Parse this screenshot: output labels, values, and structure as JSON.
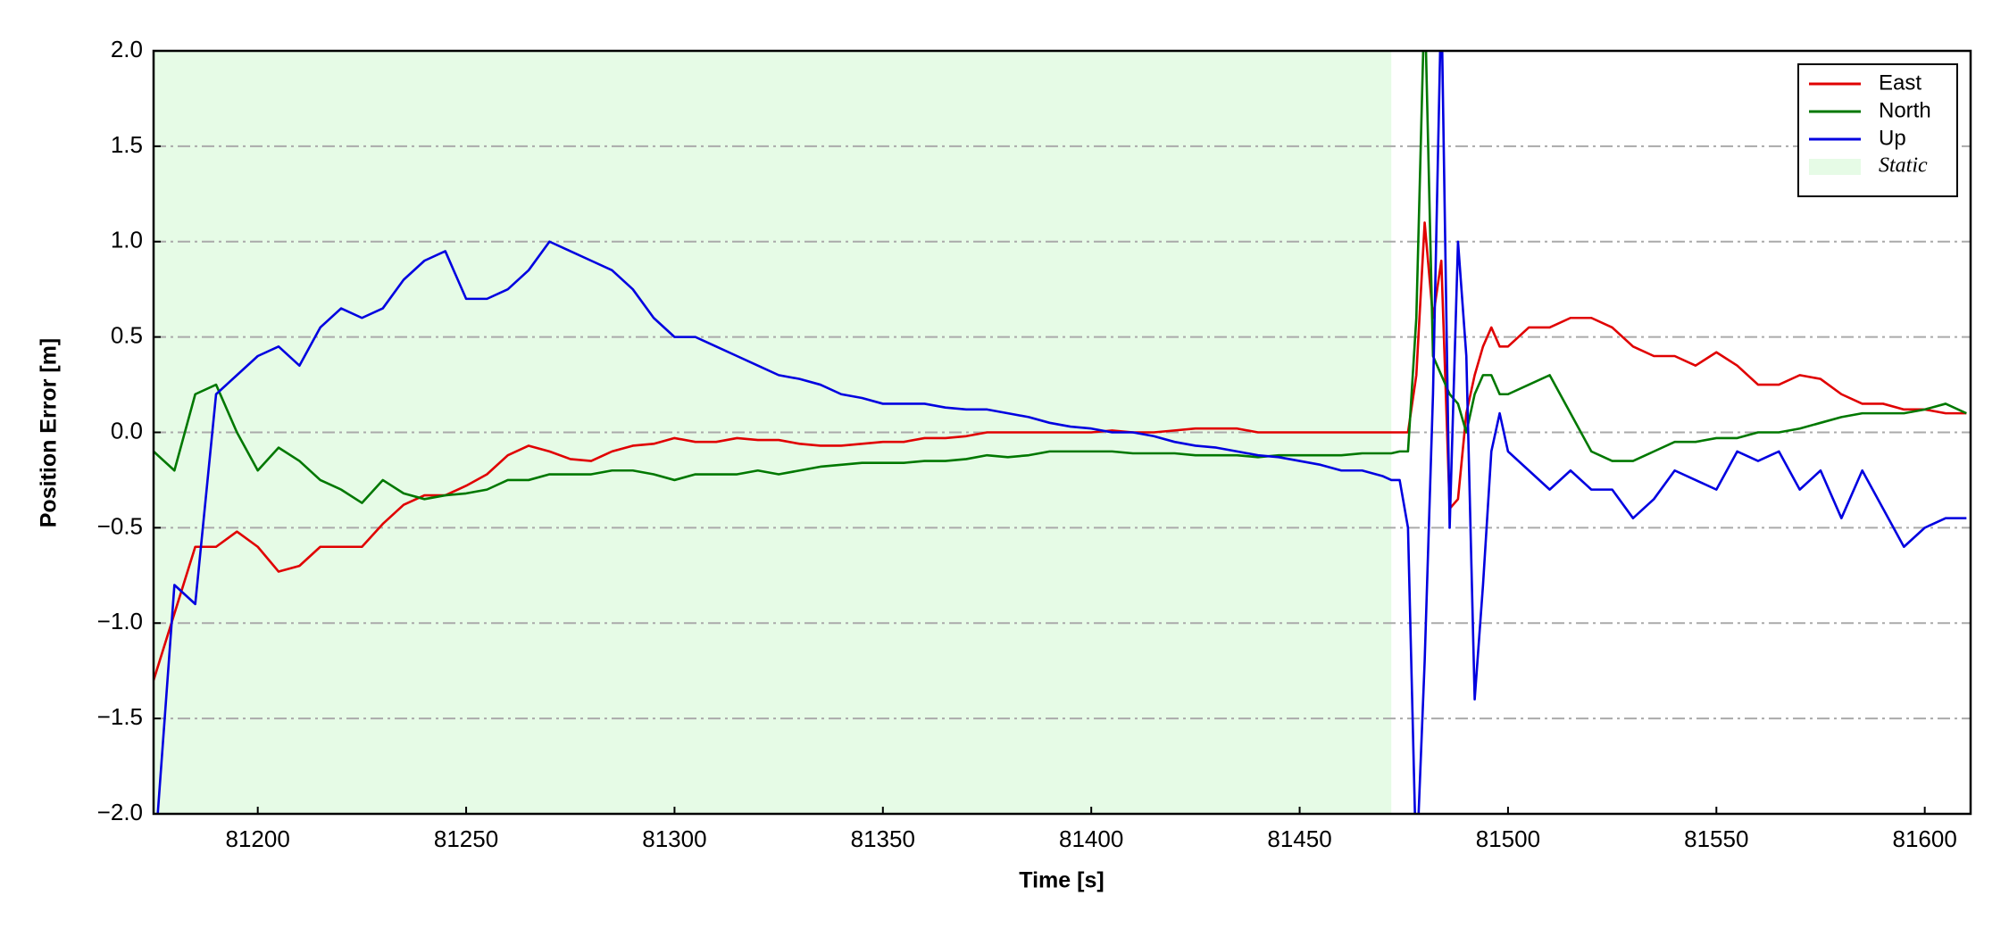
{
  "chart_data": {
    "type": "line",
    "x_label": "Time [s]",
    "y_label": "Position Error [m]",
    "xlim": [
      81175,
      81611
    ],
    "ylim": [
      -2,
      2
    ],
    "xticks": [
      81200,
      81250,
      81300,
      81350,
      81400,
      81450,
      81500,
      81550,
      81600
    ],
    "yticks": [
      {
        "value": -2,
        "label": "−2.0"
      },
      {
        "value": -1.5,
        "label": "−1.5"
      },
      {
        "value": -1,
        "label": "−1.0"
      },
      {
        "value": -0.5,
        "label": "−0.5"
      },
      {
        "value": 0,
        "label": "0.0"
      },
      {
        "value": 0.5,
        "label": "0.5"
      },
      {
        "value": 1,
        "label": "1.0"
      },
      {
        "value": 1.5,
        "label": "1.5"
      },
      {
        "value": 2,
        "label": "2.0"
      }
    ],
    "grid": "y",
    "legend_position": "upper right",
    "static_span": [
      81175,
      81472
    ],
    "static_label": "Static",
    "static_color": "#e6fbe6",
    "x": [
      81175,
      81180,
      81185,
      81190,
      81195,
      81200,
      81205,
      81210,
      81215,
      81220,
      81225,
      81230,
      81235,
      81240,
      81245,
      81250,
      81255,
      81260,
      81265,
      81270,
      81275,
      81280,
      81285,
      81290,
      81295,
      81300,
      81305,
      81310,
      81315,
      81320,
      81325,
      81330,
      81335,
      81340,
      81345,
      81350,
      81355,
      81360,
      81365,
      81370,
      81375,
      81380,
      81385,
      81390,
      81395,
      81400,
      81405,
      81410,
      81415,
      81420,
      81425,
      81430,
      81435,
      81440,
      81445,
      81450,
      81455,
      81460,
      81465,
      81470,
      81472,
      81474,
      81476,
      81478,
      81480,
      81482,
      81484,
      81486,
      81488,
      81490,
      81492,
      81494,
      81496,
      81498,
      81500,
      81505,
      81510,
      81515,
      81520,
      81525,
      81530,
      81535,
      81540,
      81545,
      81550,
      81555,
      81560,
      81565,
      81570,
      81575,
      81580,
      81585,
      81590,
      81595,
      81600,
      81605,
      81610
    ],
    "series": [
      {
        "name": "East",
        "color": "#e00000",
        "values": [
          -1.3,
          -0.95,
          -0.6,
          -0.6,
          -0.52,
          -0.6,
          -0.73,
          -0.7,
          -0.6,
          -0.6,
          -0.6,
          -0.48,
          -0.38,
          -0.33,
          -0.33,
          -0.28,
          -0.22,
          -0.12,
          -0.07,
          -0.1,
          -0.14,
          -0.15,
          -0.1,
          -0.07,
          -0.06,
          -0.03,
          -0.05,
          -0.05,
          -0.03,
          -0.04,
          -0.04,
          -0.06,
          -0.07,
          -0.07,
          -0.06,
          -0.05,
          -0.05,
          -0.03,
          -0.03,
          -0.02,
          0,
          0,
          0,
          0,
          0,
          0,
          0.01,
          0,
          0,
          0.01,
          0.02,
          0.02,
          0.02,
          0,
          0,
          0,
          0,
          0,
          0,
          0,
          0,
          0,
          0,
          0.3,
          1.1,
          0.6,
          0.9,
          -0.4,
          -0.35,
          0.1,
          0.3,
          0.45,
          0.55,
          0.45,
          0.45,
          0.55,
          0.55,
          0.6,
          0.6,
          0.55,
          0.45,
          0.4,
          0.4,
          0.35,
          0.42,
          0.35,
          0.25,
          0.25,
          0.3,
          0.28,
          0.2,
          0.15,
          0.15,
          0.12,
          0.12,
          0.1,
          0.1
        ]
      },
      {
        "name": "North",
        "color": "#007800",
        "values": [
          -0.1,
          -0.2,
          0.2,
          0.25,
          0,
          -0.2,
          -0.08,
          -0.15,
          -0.25,
          -0.3,
          -0.37,
          -0.25,
          -0.32,
          -0.35,
          -0.33,
          -0.32,
          -0.3,
          -0.25,
          -0.25,
          -0.22,
          -0.22,
          -0.22,
          -0.2,
          -0.2,
          -0.22,
          -0.25,
          -0.22,
          -0.22,
          -0.22,
          -0.2,
          -0.22,
          -0.2,
          -0.18,
          -0.17,
          -0.16,
          -0.16,
          -0.16,
          -0.15,
          -0.15,
          -0.14,
          -0.12,
          -0.13,
          -0.12,
          -0.1,
          -0.1,
          -0.1,
          -0.1,
          -0.11,
          -0.11,
          -0.11,
          -0.12,
          -0.12,
          -0.12,
          -0.13,
          -0.12,
          -0.12,
          -0.12,
          -0.12,
          -0.11,
          -0.11,
          -0.11,
          -0.1,
          -0.1,
          0.6,
          2.3,
          0.4,
          0.3,
          0.2,
          0.15,
          0,
          0.2,
          0.3,
          0.3,
          0.2,
          0.2,
          0.25,
          0.3,
          0.1,
          -0.1,
          -0.15,
          -0.15,
          -0.1,
          -0.05,
          -0.05,
          -0.03,
          -0.03,
          0,
          0,
          0.02,
          0.05,
          0.08,
          0.1,
          0.1,
          0.1,
          0.12,
          0.15,
          0.1
        ]
      },
      {
        "name": "Up",
        "color": "#0000e0",
        "values": [
          -2.3,
          -0.8,
          -0.9,
          0.2,
          0.3,
          0.4,
          0.45,
          0.35,
          0.55,
          0.65,
          0.6,
          0.65,
          0.8,
          0.9,
          0.95,
          0.7,
          0.7,
          0.75,
          0.85,
          1,
          0.95,
          0.9,
          0.85,
          0.75,
          0.6,
          0.5,
          0.5,
          0.45,
          0.4,
          0.35,
          0.3,
          0.28,
          0.25,
          0.2,
          0.18,
          0.15,
          0.15,
          0.15,
          0.13,
          0.12,
          0.12,
          0.1,
          0.08,
          0.05,
          0.03,
          0.02,
          0,
          0,
          -0.02,
          -0.05,
          -0.07,
          -0.08,
          -0.1,
          -0.12,
          -0.13,
          -0.15,
          -0.17,
          -0.2,
          -0.2,
          -0.23,
          -0.25,
          -0.25,
          -0.5,
          -2.3,
          -1.2,
          0.2,
          2.3,
          -0.5,
          1,
          0.4,
          -1.4,
          -0.8,
          -0.1,
          0.1,
          -0.1,
          -0.2,
          -0.3,
          -0.2,
          -0.3,
          -0.3,
          -0.45,
          -0.35,
          -0.2,
          -0.25,
          -0.3,
          -0.1,
          -0.15,
          -0.1,
          -0.3,
          -0.2,
          -0.45,
          -0.2,
          -0.4,
          -0.6,
          -0.5,
          -0.45,
          -0.45
        ]
      }
    ]
  }
}
